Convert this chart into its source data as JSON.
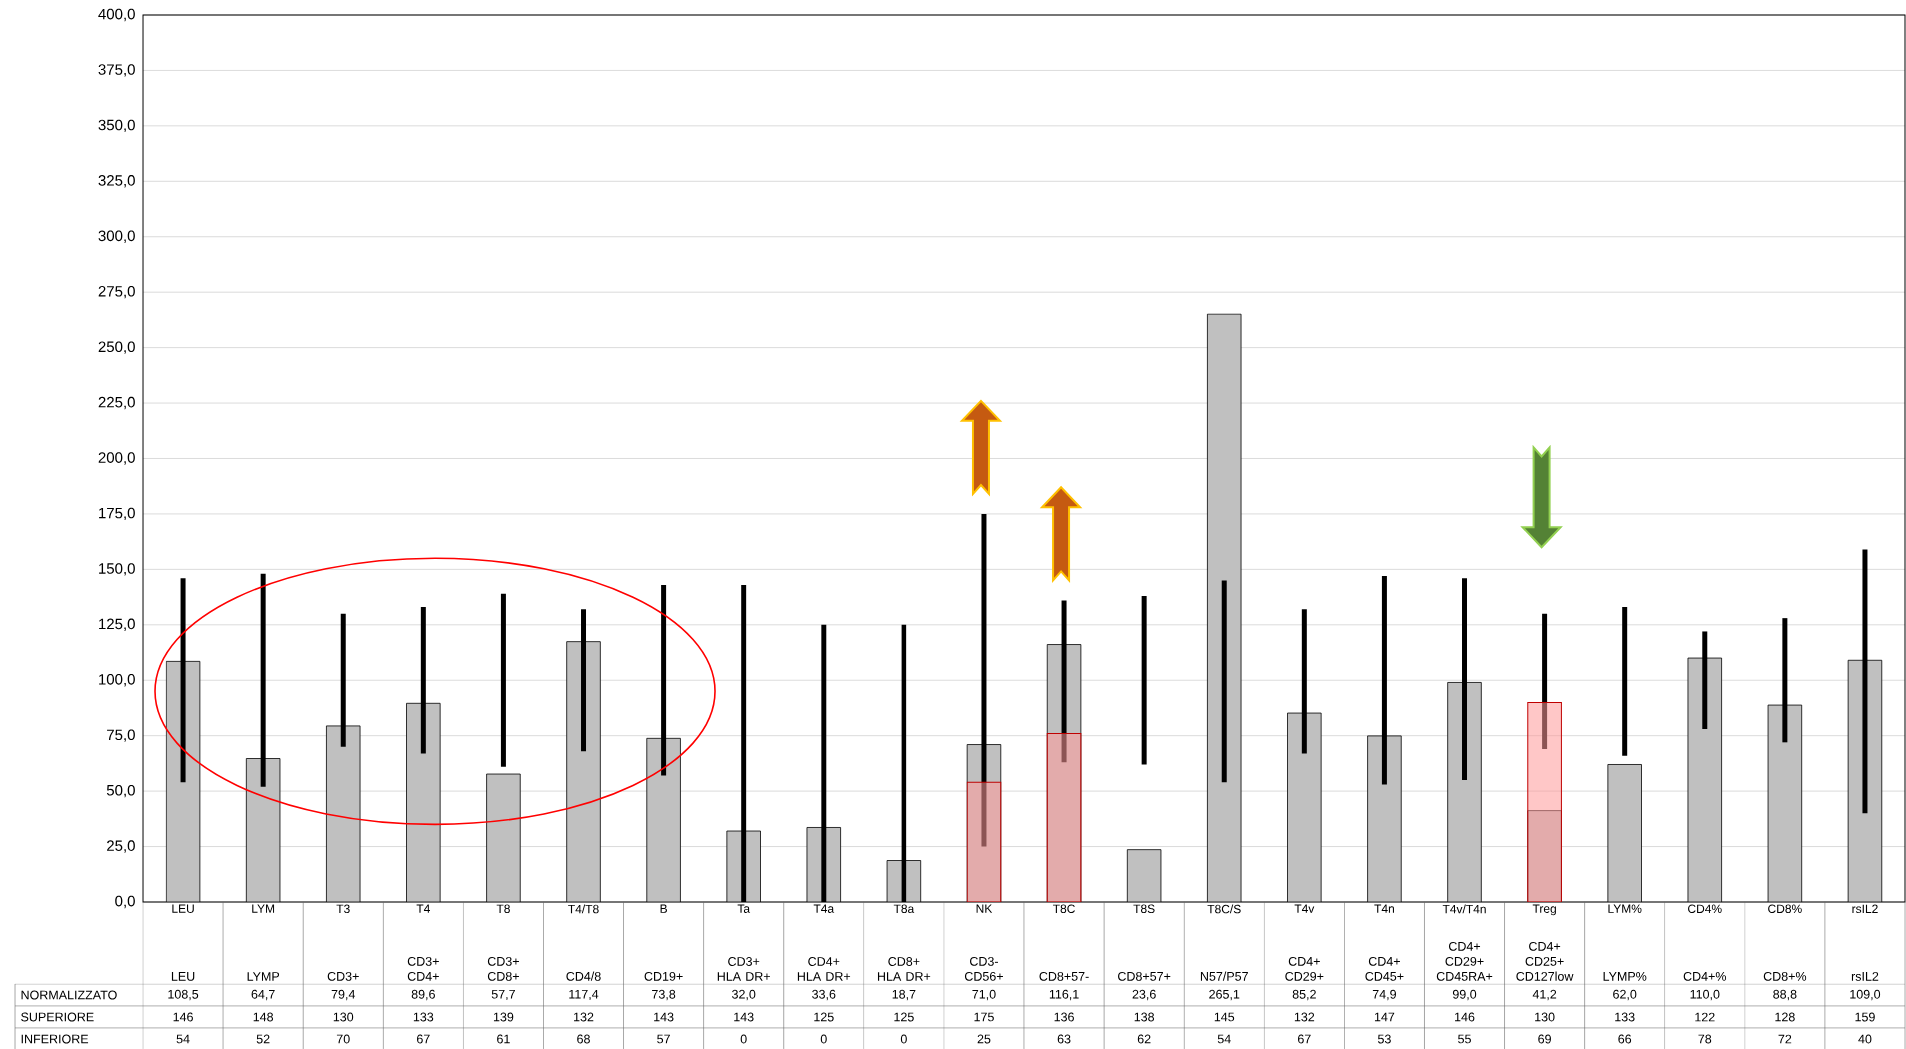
{
  "chart_data": {
    "type": "bar",
    "categories": [
      "LEU",
      "LYM",
      "T3",
      "T4",
      "T8",
      "T4/T8",
      "B",
      "Ta",
      "T4a",
      "T8a",
      "NK",
      "T8C",
      "T8S",
      "T8C/S",
      "T4v",
      "T4n",
      "T4v/T4n",
      "Treg",
      "LYM%",
      "CD4%",
      "CD8%",
      "rsIL2"
    ],
    "series": [
      {
        "name": "NORMALIZZATO",
        "color": "#c0c0c0",
        "values": [
          108.5,
          64.7,
          79.4,
          89.6,
          57.7,
          117.4,
          73.8,
          32.0,
          33.6,
          18.7,
          71.0,
          116.1,
          23.6,
          265.1,
          85.2,
          74.9,
          99.0,
          41.2,
          62.0,
          110.0,
          88.8,
          109.0
        ],
        "value_labels": [
          "108,5",
          "64,7",
          "79,4",
          "89,6",
          "57,7",
          "117,4",
          "73,8",
          "32,0",
          "33,6",
          "18,7",
          "71,0",
          "116,1",
          "23,6",
          "265,1",
          "85,2",
          "74,9",
          "99,0",
          "41,2",
          "62,0",
          "110,0",
          "88,8",
          "109,0"
        ],
        "errors": [
          [
            54,
            146
          ],
          [
            52,
            148
          ],
          [
            70,
            130
          ],
          [
            67,
            133
          ],
          [
            61,
            139
          ],
          [
            68,
            132
          ],
          [
            57,
            143
          ],
          [
            0,
            143
          ],
          [
            0,
            125
          ],
          [
            0,
            125
          ],
          [
            25,
            175
          ],
          [
            63,
            136
          ],
          [
            62,
            138
          ],
          [
            54,
            145
          ],
          [
            67,
            132
          ],
          [
            53,
            147
          ],
          [
            55,
            146
          ],
          [
            69,
            130
          ],
          [
            66,
            133
          ],
          [
            78,
            122
          ],
          [
            72,
            128
          ],
          [
            40,
            159
          ]
        ]
      },
      {
        "color": "#ff9999",
        "values": [
          null,
          null,
          null,
          null,
          null,
          null,
          null,
          null,
          null,
          null,
          54,
          76,
          null,
          null,
          null,
          null,
          null,
          90,
          null,
          null,
          null,
          null
        ]
      }
    ],
    "ylim": [
      0,
      400
    ],
    "yticks": [
      {
        "value": 0,
        "label": "0,0"
      },
      {
        "value": 25,
        "label": "25,0"
      },
      {
        "value": 50,
        "label": "50,0"
      },
      {
        "value": 75,
        "label": "75,0"
      },
      {
        "value": 100,
        "label": "100,0"
      },
      {
        "value": 125,
        "label": "125,0"
      },
      {
        "value": 150,
        "label": "150,0"
      },
      {
        "value": 175,
        "label": "175,0"
      },
      {
        "value": 200,
        "label": "200,0"
      },
      {
        "value": 225,
        "label": "225,0"
      },
      {
        "value": 250,
        "label": "250,0"
      },
      {
        "value": 275,
        "label": "275,0"
      },
      {
        "value": 300,
        "label": "300,0"
      },
      {
        "value": 325,
        "label": "325,0"
      },
      {
        "value": 350,
        "label": "350,0"
      },
      {
        "value": 375,
        "label": "375,0"
      },
      {
        "value": 400,
        "label": "400,0"
      }
    ],
    "grid": "y",
    "annotations": [
      "LEU",
      "LYMP",
      "CD3+",
      "CD3+ CD4+",
      "CD3+ CD8+",
      "CD4/8",
      "CD19+",
      "CD3+ HLA DR+",
      "CD4+ HLA DR+",
      "CD8+ HLA DR+",
      "CD3- CD56+",
      "CD8+57-",
      "CD8+57+",
      "N57/P57",
      "CD4+ CD29+",
      "CD4+ CD45+",
      "CD4+ CD29+ CD45RA+",
      "CD4+ CD25+ CD127low",
      "LYMP%",
      "CD4+%",
      "CD8+%",
      "rsIL2",
      "SUPERIORE",
      "146",
      "148",
      "130",
      "133",
      "139",
      "132",
      "143",
      "143",
      "125",
      "125",
      "175",
      "136",
      "138",
      "145",
      "132",
      "147",
      "146",
      "130",
      "133",
      "122",
      "128",
      "159",
      "INFERIORE",
      "54",
      "52",
      "70",
      "67",
      "61",
      "68",
      "57",
      "0",
      "0",
      "0",
      "25",
      "63",
      "62",
      "54",
      "67",
      "53",
      "55",
      "69",
      "66",
      "78",
      "72",
      "40"
    ]
  }
}
